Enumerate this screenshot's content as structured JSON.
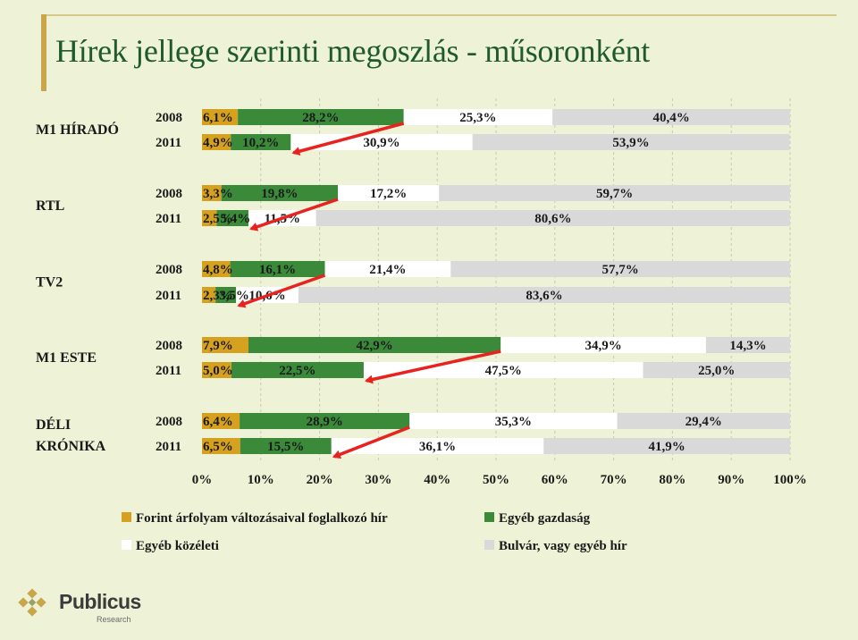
{
  "slide": {
    "title": "Hírek jellege szerinti megoszlás - műsoronként"
  },
  "chart_data": {
    "type": "bar",
    "orientation": "horizontal",
    "stacked": "percent",
    "title": "",
    "xlabel": "",
    "ylabel": "",
    "xlim": [
      0,
      100
    ],
    "x_ticks": [
      "0%",
      "10%",
      "20%",
      "30%",
      "40%",
      "50%",
      "60%",
      "70%",
      "80%",
      "90%",
      "100%"
    ],
    "grid": true,
    "legend_position": "bottom",
    "series": [
      {
        "name": "Forint árfolyam változásaival foglalkozó hír",
        "color": "#d6a11e"
      },
      {
        "name": "Egyéb gazdaság",
        "color": "#3a8a3a"
      },
      {
        "name": "Egyéb közéleti",
        "color": "#ffffff"
      },
      {
        "name": "Bulvár, vagy egyéb hír",
        "color": "#d9d9d9"
      }
    ],
    "groups": [
      {
        "name": "M1 HÍRADÓ",
        "rows": [
          {
            "year": "2008",
            "values": [
              6.1,
              28.2,
              25.3,
              40.4
            ],
            "labels": [
              "6,1%",
              "28,2%",
              "25,3%",
              "40,4%"
            ]
          },
          {
            "year": "2011",
            "values": [
              4.9,
              10.2,
              30.9,
              53.9
            ],
            "labels": [
              "4,9%",
              "10,2%",
              "30,9%",
              "53,9%"
            ]
          }
        ]
      },
      {
        "name": "RTL",
        "rows": [
          {
            "year": "2008",
            "values": [
              3.3,
              19.8,
              17.2,
              59.7
            ],
            "labels": [
              "3,3%",
              "19,8%",
              "17,2%",
              "59,7%"
            ]
          },
          {
            "year": "2011",
            "values": [
              2.5,
              5.4,
              11.5,
              80.6
            ],
            "labels": [
              "2,5%",
              "5,4%",
              "11,5%",
              "80,6%"
            ]
          }
        ]
      },
      {
        "name": "TV2",
        "rows": [
          {
            "year": "2008",
            "values": [
              4.8,
              16.1,
              21.4,
              57.7
            ],
            "labels": [
              "4,8%",
              "16,1%",
              "21,4%",
              "57,7%"
            ]
          },
          {
            "year": "2011",
            "values": [
              2.3,
              3.5,
              10.6,
              83.6
            ],
            "labels": [
              "2,3%",
              "3,5%",
              "10,6%",
              "83,6%"
            ]
          }
        ]
      },
      {
        "name": "M1 ESTE",
        "rows": [
          {
            "year": "2008",
            "values": [
              7.9,
              42.9,
              34.9,
              14.3
            ],
            "labels": [
              "7,9%",
              "42,9%",
              "34,9%",
              "14,3%"
            ]
          },
          {
            "year": "2011",
            "values": [
              5.0,
              22.5,
              47.5,
              25.0
            ],
            "labels": [
              "5,0%",
              "22,5%",
              "47,5%",
              "25,0%"
            ]
          }
        ]
      },
      {
        "name": "DÉLI KRÓNIKA",
        "rows": [
          {
            "year": "2008",
            "values": [
              6.4,
              28.9,
              35.3,
              29.4
            ],
            "labels": [
              "6,4%",
              "28,9%",
              "35,3%",
              "29,4%"
            ]
          },
          {
            "year": "2011",
            "values": [
              6.5,
              15.5,
              36.1,
              41.9
            ],
            "labels": [
              "6,5%",
              "15,5%",
              "36,1%",
              "41,9%"
            ]
          }
        ]
      }
    ],
    "annotation_arrows": {
      "color": "#e8231f",
      "from_series": "Egyéb gazdaság",
      "meaning": "2008 → 2011"
    }
  },
  "logo": {
    "name": "Publicus",
    "subtitle": "Research"
  }
}
